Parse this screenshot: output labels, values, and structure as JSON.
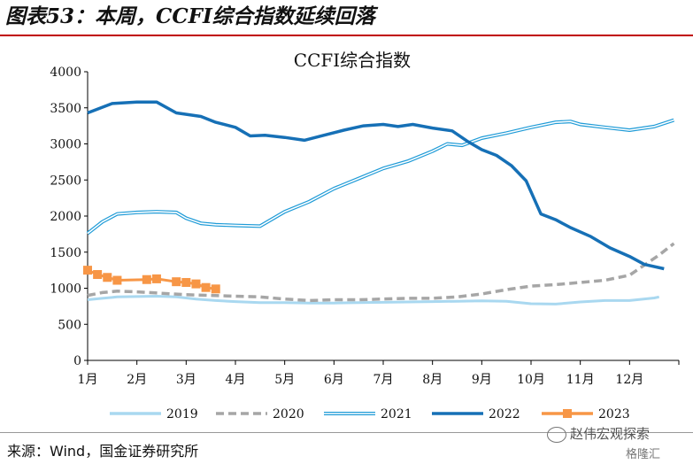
{
  "header": {
    "figure_title": "图表53：本周，CCFI综合指数延续回落"
  },
  "footer": {
    "source": "来源：Wind，国金证券研究所",
    "watermark": "赵伟宏观探索",
    "watermark_small": "格隆汇"
  },
  "chart_data": {
    "type": "line",
    "title": "CCFI综合指数",
    "xlabel": "",
    "ylabel": "",
    "x_ticks": [
      "1月",
      "2月",
      "3月",
      "4月",
      "5月",
      "6月",
      "7月",
      "8月",
      "9月",
      "10月",
      "11月",
      "12月"
    ],
    "y_ticks": [
      0,
      500,
      1000,
      1500,
      2000,
      2500,
      3000,
      3500,
      4000
    ],
    "xlim": [
      1,
      13
    ],
    "ylim": [
      0,
      4000
    ],
    "grid": false,
    "legend_position": "bottom",
    "series": [
      {
        "name": "2019",
        "color": "#a9d8f0",
        "style": "solid",
        "marker": "none",
        "points": [
          [
            1.0,
            840
          ],
          [
            1.3,
            860
          ],
          [
            1.6,
            880
          ],
          [
            2.0,
            885
          ],
          [
            2.4,
            890
          ],
          [
            2.8,
            880
          ],
          [
            3.2,
            850
          ],
          [
            3.6,
            830
          ],
          [
            4.0,
            815
          ],
          [
            4.5,
            800
          ],
          [
            5.0,
            800
          ],
          [
            5.5,
            795
          ],
          [
            6.0,
            795
          ],
          [
            6.5,
            800
          ],
          [
            7.0,
            805
          ],
          [
            7.5,
            810
          ],
          [
            8.0,
            815
          ],
          [
            8.5,
            820
          ],
          [
            9.0,
            825
          ],
          [
            9.5,
            820
          ],
          [
            10.0,
            785
          ],
          [
            10.5,
            780
          ],
          [
            11.0,
            810
          ],
          [
            11.5,
            830
          ],
          [
            12.0,
            830
          ],
          [
            12.5,
            865
          ],
          [
            12.6,
            880
          ]
        ]
      },
      {
        "name": "2020",
        "color": "#a6a6a6",
        "style": "dashed",
        "marker": "none",
        "points": [
          [
            1.0,
            900
          ],
          [
            1.3,
            940
          ],
          [
            1.6,
            960
          ],
          [
            2.0,
            950
          ],
          [
            2.5,
            930
          ],
          [
            3.0,
            910
          ],
          [
            3.5,
            900
          ],
          [
            4.0,
            890
          ],
          [
            4.5,
            880
          ],
          [
            5.0,
            850
          ],
          [
            5.5,
            830
          ],
          [
            6.0,
            840
          ],
          [
            6.5,
            840
          ],
          [
            7.0,
            850
          ],
          [
            7.5,
            860
          ],
          [
            8.0,
            860
          ],
          [
            8.5,
            880
          ],
          [
            9.0,
            920
          ],
          [
            9.5,
            980
          ],
          [
            10.0,
            1030
          ],
          [
            10.5,
            1050
          ],
          [
            11.0,
            1080
          ],
          [
            11.5,
            1110
          ],
          [
            12.0,
            1180
          ],
          [
            12.3,
            1320
          ],
          [
            12.6,
            1460
          ],
          [
            12.9,
            1620
          ]
        ]
      },
      {
        "name": "2021",
        "color": "#1f9bd7",
        "style": "double",
        "marker": "none",
        "points": [
          [
            1.0,
            1760
          ],
          [
            1.3,
            1920
          ],
          [
            1.6,
            2030
          ],
          [
            2.0,
            2050
          ],
          [
            2.4,
            2060
          ],
          [
            2.8,
            2050
          ],
          [
            3.0,
            1970
          ],
          [
            3.3,
            1900
          ],
          [
            3.6,
            1880
          ],
          [
            4.0,
            1870
          ],
          [
            4.5,
            1860
          ],
          [
            5.0,
            2060
          ],
          [
            5.5,
            2200
          ],
          [
            6.0,
            2380
          ],
          [
            6.5,
            2520
          ],
          [
            7.0,
            2660
          ],
          [
            7.5,
            2760
          ],
          [
            8.0,
            2900
          ],
          [
            8.3,
            3000
          ],
          [
            8.6,
            2980
          ],
          [
            9.0,
            3080
          ],
          [
            9.5,
            3150
          ],
          [
            10.0,
            3230
          ],
          [
            10.5,
            3300
          ],
          [
            10.8,
            3310
          ],
          [
            11.0,
            3270
          ],
          [
            11.5,
            3230
          ],
          [
            12.0,
            3190
          ],
          [
            12.5,
            3240
          ],
          [
            12.9,
            3330
          ]
        ]
      },
      {
        "name": "2022",
        "color": "#1670b6",
        "style": "solid",
        "marker": "none",
        "points": [
          [
            1.0,
            3430
          ],
          [
            1.5,
            3560
          ],
          [
            2.0,
            3580
          ],
          [
            2.4,
            3580
          ],
          [
            2.8,
            3430
          ],
          [
            3.3,
            3380
          ],
          [
            3.6,
            3300
          ],
          [
            4.0,
            3230
          ],
          [
            4.3,
            3110
          ],
          [
            4.6,
            3120
          ],
          [
            5.0,
            3090
          ],
          [
            5.4,
            3050
          ],
          [
            5.8,
            3120
          ],
          [
            6.2,
            3190
          ],
          [
            6.6,
            3250
          ],
          [
            7.0,
            3270
          ],
          [
            7.3,
            3240
          ],
          [
            7.6,
            3270
          ],
          [
            8.0,
            3220
          ],
          [
            8.4,
            3180
          ],
          [
            8.7,
            3040
          ],
          [
            9.0,
            2920
          ],
          [
            9.3,
            2840
          ],
          [
            9.6,
            2700
          ],
          [
            9.9,
            2490
          ],
          [
            10.2,
            2030
          ],
          [
            10.5,
            1950
          ],
          [
            10.8,
            1840
          ],
          [
            11.2,
            1720
          ],
          [
            11.6,
            1560
          ],
          [
            12.0,
            1440
          ],
          [
            12.3,
            1330
          ],
          [
            12.7,
            1270
          ]
        ]
      },
      {
        "name": "2023",
        "color": "#f79646",
        "style": "solid",
        "marker": "square",
        "points": [
          [
            1.0,
            1250
          ],
          [
            1.2,
            1190
          ],
          [
            1.4,
            1150
          ],
          [
            1.6,
            1110
          ],
          [
            2.2,
            1120
          ],
          [
            2.4,
            1130
          ],
          [
            2.8,
            1090
          ],
          [
            3.0,
            1080
          ],
          [
            3.2,
            1060
          ],
          [
            3.4,
            1010
          ],
          [
            3.6,
            990
          ]
        ]
      }
    ]
  }
}
